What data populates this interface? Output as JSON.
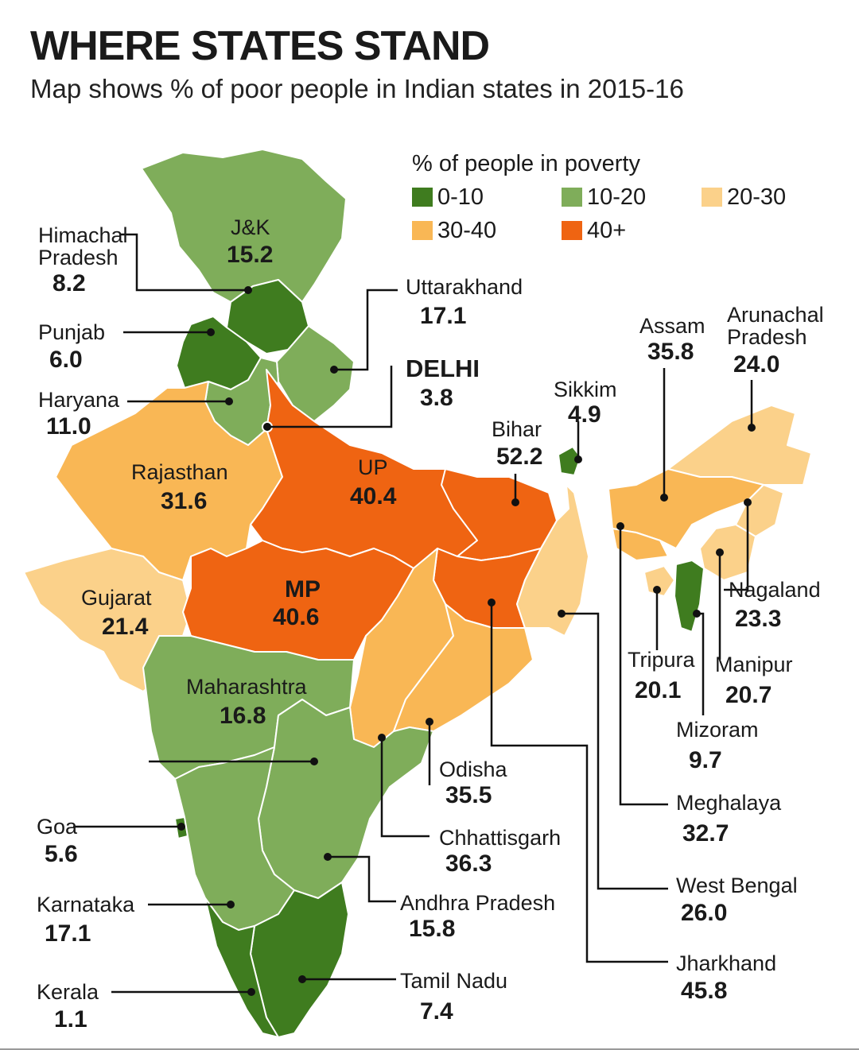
{
  "header": {
    "title": "WHERE STATES STAND",
    "subtitle": "Map shows % of poor people in Indian states in 2015-16"
  },
  "legend": {
    "title": "% of people in poverty",
    "items": [
      {
        "label": "0-10",
        "color": "#3f7c1f"
      },
      {
        "label": "10-20",
        "color": "#7fad5a"
      },
      {
        "label": "20-30",
        "color": "#fbd18a"
      },
      {
        "label": "30-40",
        "color": "#f9b755"
      },
      {
        "label": "40+",
        "color": "#ef6412"
      }
    ]
  },
  "states": [
    {
      "name": "J&K",
      "value": "15.2",
      "bracket": "10-20"
    },
    {
      "name": "Himachal\nPradesh",
      "value": "8.2",
      "bracket": "0-10"
    },
    {
      "name": "Punjab",
      "value": "6.0",
      "bracket": "0-10"
    },
    {
      "name": "Haryana",
      "value": "11.0",
      "bracket": "10-20"
    },
    {
      "name": "Uttarakhand",
      "value": "17.1",
      "bracket": "10-20"
    },
    {
      "name": "DELHI",
      "value": "3.8",
      "bracket": "0-10"
    },
    {
      "name": "Rajasthan",
      "value": "31.6",
      "bracket": "30-40"
    },
    {
      "name": "UP",
      "value": "40.4",
      "bracket": "40+"
    },
    {
      "name": "Gujarat",
      "value": "21.4",
      "bracket": "20-30"
    },
    {
      "name": "MP",
      "value": "40.6",
      "bracket": "40+"
    },
    {
      "name": "Sikkim",
      "value": "4.9",
      "bracket": "0-10"
    },
    {
      "name": "Bihar",
      "value": "52.2",
      "bracket": "40+"
    },
    {
      "name": "Assam",
      "value": "35.8",
      "bracket": "30-40"
    },
    {
      "name": "Arunachal\nPradesh",
      "value": "24.0",
      "bracket": "20-30"
    },
    {
      "name": "Nagaland",
      "value": "23.3",
      "bracket": "20-30"
    },
    {
      "name": "Tripura",
      "value": "20.1",
      "bracket": "20-30"
    },
    {
      "name": "Manipur",
      "value": "20.7",
      "bracket": "20-30"
    },
    {
      "name": "Mizoram",
      "value": "9.7",
      "bracket": "0-10"
    },
    {
      "name": "Meghalaya",
      "value": "32.7",
      "bracket": "30-40"
    },
    {
      "name": "West Bengal",
      "value": "26.0",
      "bracket": "20-30"
    },
    {
      "name": "Jharkhand",
      "value": "45.8",
      "bracket": "40+"
    },
    {
      "name": "Maharashtra",
      "value": "16.8",
      "bracket": "10-20"
    },
    {
      "name": "Odisha",
      "value": "35.5",
      "bracket": "30-40"
    },
    {
      "name": "Chhattisgarh",
      "value": "36.3",
      "bracket": "30-40"
    },
    {
      "name": "Andhra Pradesh",
      "value": "15.8",
      "bracket": "10-20"
    },
    {
      "name": "Goa",
      "value": "5.6",
      "bracket": "0-10"
    },
    {
      "name": "Karnataka",
      "value": "17.1",
      "bracket": "10-20"
    },
    {
      "name": "Tamil Nadu",
      "value": "7.4",
      "bracket": "0-10"
    },
    {
      "name": "Kerala",
      "value": "1.1",
      "bracket": "0-10"
    }
  ]
}
